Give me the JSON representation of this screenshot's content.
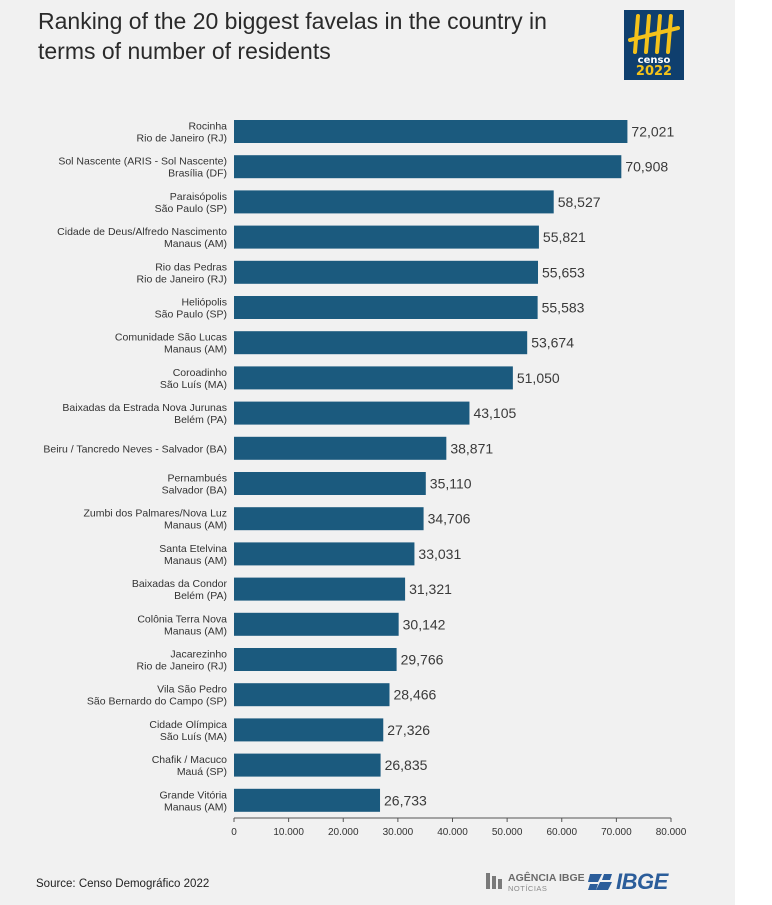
{
  "title": "Ranking of the 20 biggest favelas in the country in terms of number of residents",
  "logo": {
    "icon": "censo-tally-icon",
    "word1": "censo",
    "word2": "2022",
    "bg_color": "#0f3f6e",
    "accent_color": "#f4c21a"
  },
  "source": "Source: Censo Demográfico 2022",
  "footer": {
    "agencia_name": "AGÊNCIA IBGE",
    "agencia_sub": "NOTÍCIAS",
    "ibge": "IBGE"
  },
  "chart_data": {
    "type": "bar",
    "orientation": "horizontal",
    "bar_color": "#1b5a7e",
    "categories": [
      [
        "Rocinha",
        "Rio de Janeiro (RJ)"
      ],
      [
        "Sol Nascente (ARIS - Sol Nascente)",
        "Brasília (DF)"
      ],
      [
        "Paraisópolis",
        "São Paulo (SP)"
      ],
      [
        "Cidade de Deus/Alfredo Nascimento",
        "Manaus (AM)"
      ],
      [
        "Rio das Pedras",
        "Rio de Janeiro (RJ)"
      ],
      [
        "Heliópolis",
        "São Paulo (SP)"
      ],
      [
        "Comunidade São Lucas",
        "Manaus (AM)"
      ],
      [
        "Coroadinho",
        "São Luís (MA)"
      ],
      [
        "Baixadas da Estrada Nova Jurunas",
        "Belém (PA)"
      ],
      [
        "Beiru / Tancredo Neves - Salvador (BA)"
      ],
      [
        "Pernambués",
        "Salvador (BA)"
      ],
      [
        "Zumbi dos Palmares/Nova Luz",
        "Manaus (AM)"
      ],
      [
        "Santa Etelvina",
        "Manaus (AM)"
      ],
      [
        "Baixadas da Condor",
        "Belém (PA)"
      ],
      [
        "Colônia Terra Nova",
        "Manaus (AM)"
      ],
      [
        "Jacarezinho",
        "Rio de Janeiro (RJ)"
      ],
      [
        "Vila São Pedro",
        "São Bernardo do Campo (SP)"
      ],
      [
        "Cidade Olímpica",
        "São Luís (MA)"
      ],
      [
        "Chafik / Macuco",
        "Mauá (SP)"
      ],
      [
        "Grande Vitória",
        "Manaus (AM)"
      ]
    ],
    "values": [
      72021,
      70908,
      58527,
      55821,
      55653,
      55583,
      53674,
      51050,
      43105,
      38871,
      35110,
      34706,
      33031,
      31321,
      30142,
      29766,
      28466,
      27326,
      26835,
      26733
    ],
    "value_labels": [
      "72,021",
      "70,908",
      "58,527",
      "55,821",
      "55,653",
      "55,583",
      "53,674",
      "51,050",
      "43,105",
      "38,871",
      "35,110",
      "34,706",
      "33,031",
      "31,321",
      "30,142",
      "29,766",
      "28,466",
      "27,326",
      "26,835",
      "26,733"
    ],
    "xlim": [
      0,
      80000
    ],
    "xticks": [
      0,
      10000,
      20000,
      30000,
      40000,
      50000,
      60000,
      70000,
      80000
    ],
    "xtick_labels": [
      "0",
      "10.000",
      "20.000",
      "30.000",
      "40.000",
      "50.000",
      "60.000",
      "70.000",
      "80.000"
    ],
    "xlabel": "",
    "ylabel": "",
    "grid": false,
    "legend": "none"
  }
}
